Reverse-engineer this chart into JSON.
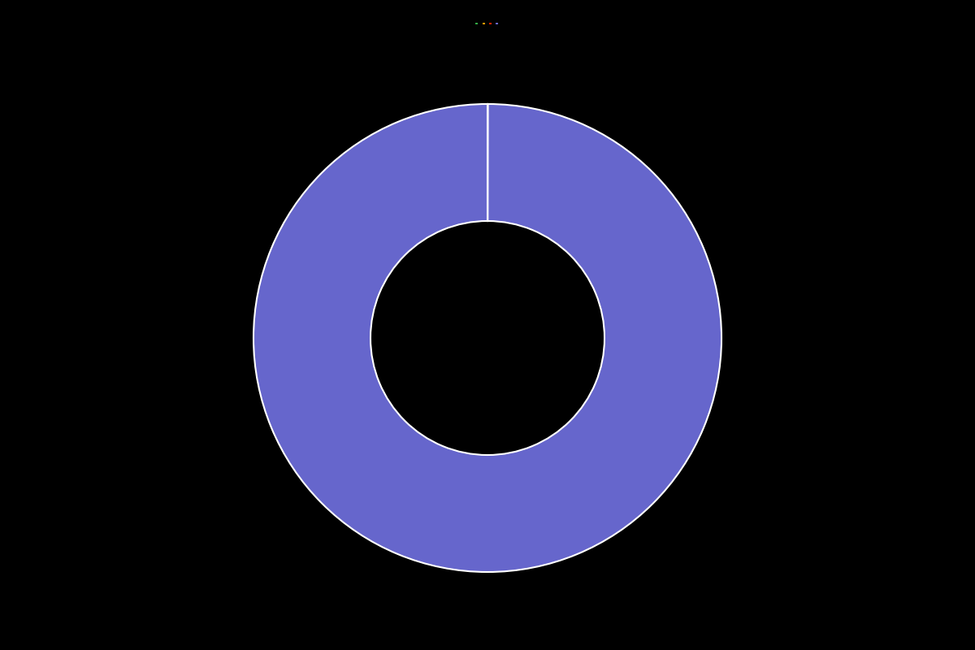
{
  "slices": [
    0.01,
    0.01,
    0.01,
    99.97
  ],
  "colors": [
    "#33aa44",
    "#ff9900",
    "#dd2200",
    "#6666cc"
  ],
  "legend_labels": [
    "",
    "",
    "",
    ""
  ],
  "background_color": "#000000",
  "wedge_edge_color": "#ffffff",
  "wedge_linewidth": 1.5,
  "donut_width": 0.5,
  "figsize": [
    12,
    8
  ],
  "dpi": 100
}
